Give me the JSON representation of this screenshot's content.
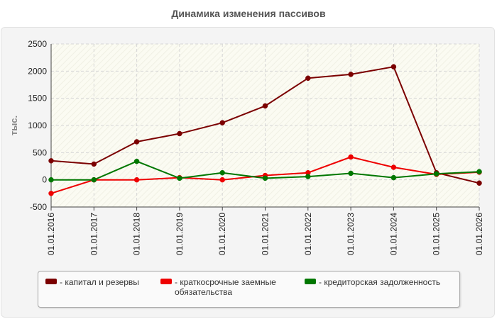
{
  "title": "Динамика изменения пассивов",
  "chart_data": {
    "type": "line",
    "title": "Динамика изменения пассивов",
    "ylabel": "тыс.",
    "xlabel": "",
    "ylim": [
      -500,
      2500
    ],
    "yticks": [
      -500,
      0,
      500,
      1000,
      1500,
      2000,
      2500
    ],
    "grid": true,
    "legend_position": "bottom",
    "categories": [
      "01.01.2016",
      "01.01.2017",
      "01.01.2018",
      "01.01.2019",
      "01.01.2020",
      "01.01.2021",
      "01.01.2022",
      "01.01.2023",
      "01.01.2024",
      "01.01.2025",
      "01.01.2026"
    ],
    "series": [
      {
        "name": "- капитал и резервы",
        "color": "#7b0000",
        "values": [
          350,
          290,
          700,
          850,
          1050,
          1360,
          1870,
          1940,
          2080,
          130,
          -60
        ]
      },
      {
        "name": "- краткосрочные заемные обязательства",
        "color": "#ee0000",
        "values": [
          -250,
          0,
          0,
          40,
          0,
          80,
          130,
          420,
          230,
          100,
          140
        ]
      },
      {
        "name": "- кредиторская задолженность",
        "color": "#007700",
        "values": [
          0,
          0,
          340,
          30,
          130,
          30,
          60,
          120,
          40,
          110,
          150
        ]
      }
    ]
  }
}
